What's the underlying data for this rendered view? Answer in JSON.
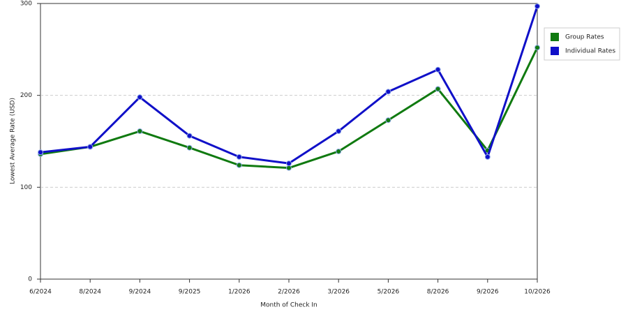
{
  "chart_data": {
    "type": "line",
    "x_label": "Month of Check In",
    "y_label": "Lowest Average Rate (USD)",
    "categories": [
      "6/2024",
      "8/2024",
      "9/2024",
      "9/2025",
      "1/2026",
      "2/2026",
      "3/2026",
      "5/2026",
      "8/2026",
      "9/2026",
      "10/2026"
    ],
    "series": [
      {
        "name": "Group Rates",
        "color": "#107a10",
        "values": [
          136,
          144,
          161,
          143,
          124,
          121,
          139,
          173,
          207,
          140,
          252
        ]
      },
      {
        "name": "Individual Rates",
        "color": "#1010c8",
        "values": [
          138,
          144,
          198,
          156,
          133,
          126,
          161,
          204,
          228,
          133,
          297
        ]
      }
    ],
    "ylim": [
      0,
      300
    ],
    "yticks": [
      0,
      100,
      200,
      300
    ],
    "grid": true,
    "legend_position": "right"
  }
}
